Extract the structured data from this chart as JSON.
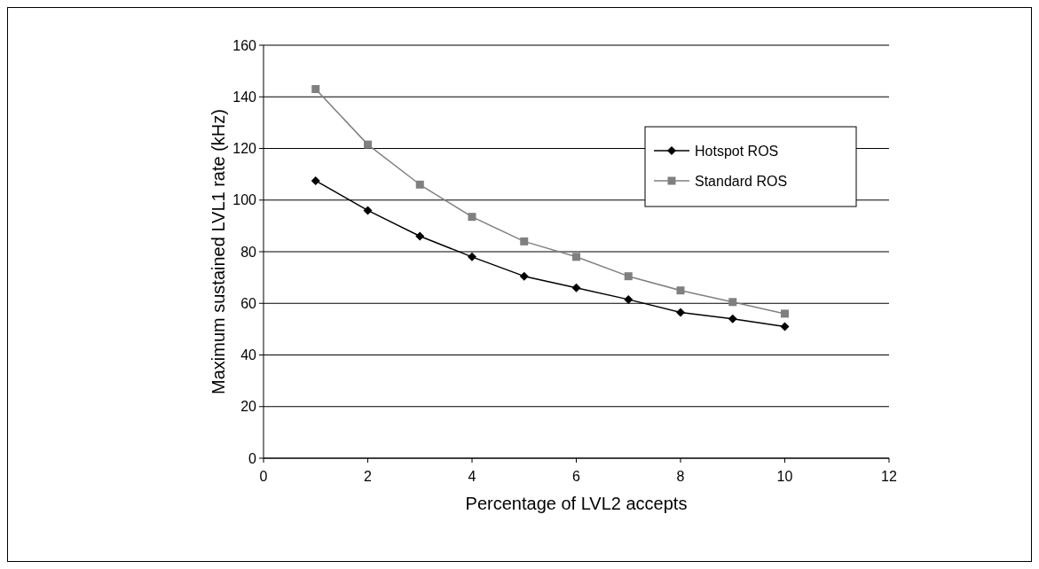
{
  "chart_data": {
    "type": "line",
    "xlabel": "Percentage of LVL2 accepts",
    "ylabel": "Maximum sustained LVL1 rate (kHz)",
    "x": [
      1,
      2,
      3,
      4,
      5,
      6,
      7,
      8,
      9,
      10
    ],
    "series": [
      {
        "name": "Hotspot ROS",
        "color": "#000000",
        "marker": "diamond",
        "values": [
          107.5,
          96,
          86,
          78,
          70.5,
          66,
          61.5,
          56.5,
          54,
          51
        ]
      },
      {
        "name": "Standard ROS",
        "color": "#808080",
        "marker": "square",
        "values": [
          143,
          121.5,
          106,
          93.5,
          84,
          78,
          70.5,
          65,
          60.5,
          56
        ]
      }
    ],
    "xlim": [
      0,
      12
    ],
    "xticks": [
      0,
      2,
      4,
      6,
      8,
      10,
      12
    ],
    "ylim": [
      0,
      160
    ],
    "yticks": [
      0,
      20,
      40,
      60,
      80,
      100,
      120,
      140,
      160
    ],
    "grid": "y",
    "legend": "right",
    "line_style": "solid"
  }
}
